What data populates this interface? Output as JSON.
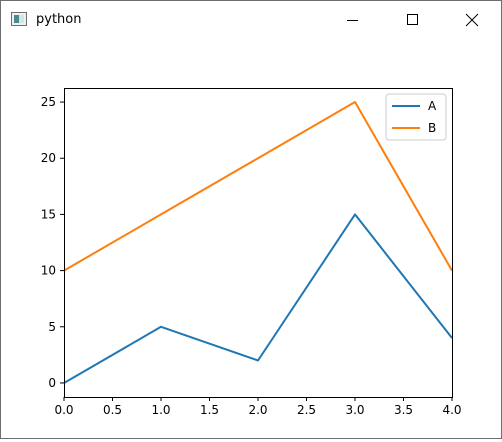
{
  "window": {
    "title": "python"
  },
  "chart_data": {
    "type": "line",
    "x": [
      0,
      1,
      2,
      3,
      4
    ],
    "series": [
      {
        "name": "A",
        "values": [
          0,
          5,
          2,
          15,
          4
        ],
        "color": "#1f77b4"
      },
      {
        "name": "B",
        "values": [
          10,
          15,
          20,
          25,
          10
        ],
        "color": "#ff7f0e"
      }
    ],
    "xlim": [
      0,
      4
    ],
    "ylim": [
      -1.25,
      26.25
    ],
    "xticks": [
      0,
      0.5,
      1,
      1.5,
      2,
      2.5,
      3,
      3.5,
      4
    ],
    "xtick_labels": [
      "0.0",
      "0.5",
      "1.0",
      "1.5",
      "2.0",
      "2.5",
      "3.0",
      "3.5",
      "4.0"
    ],
    "yticks": [
      0,
      5,
      10,
      15,
      20,
      25
    ],
    "ytick_labels": [
      "0",
      "5",
      "10",
      "15",
      "20",
      "25"
    ],
    "title": "",
    "xlabel": "",
    "ylabel": "",
    "grid": false,
    "legend": "top-right"
  }
}
